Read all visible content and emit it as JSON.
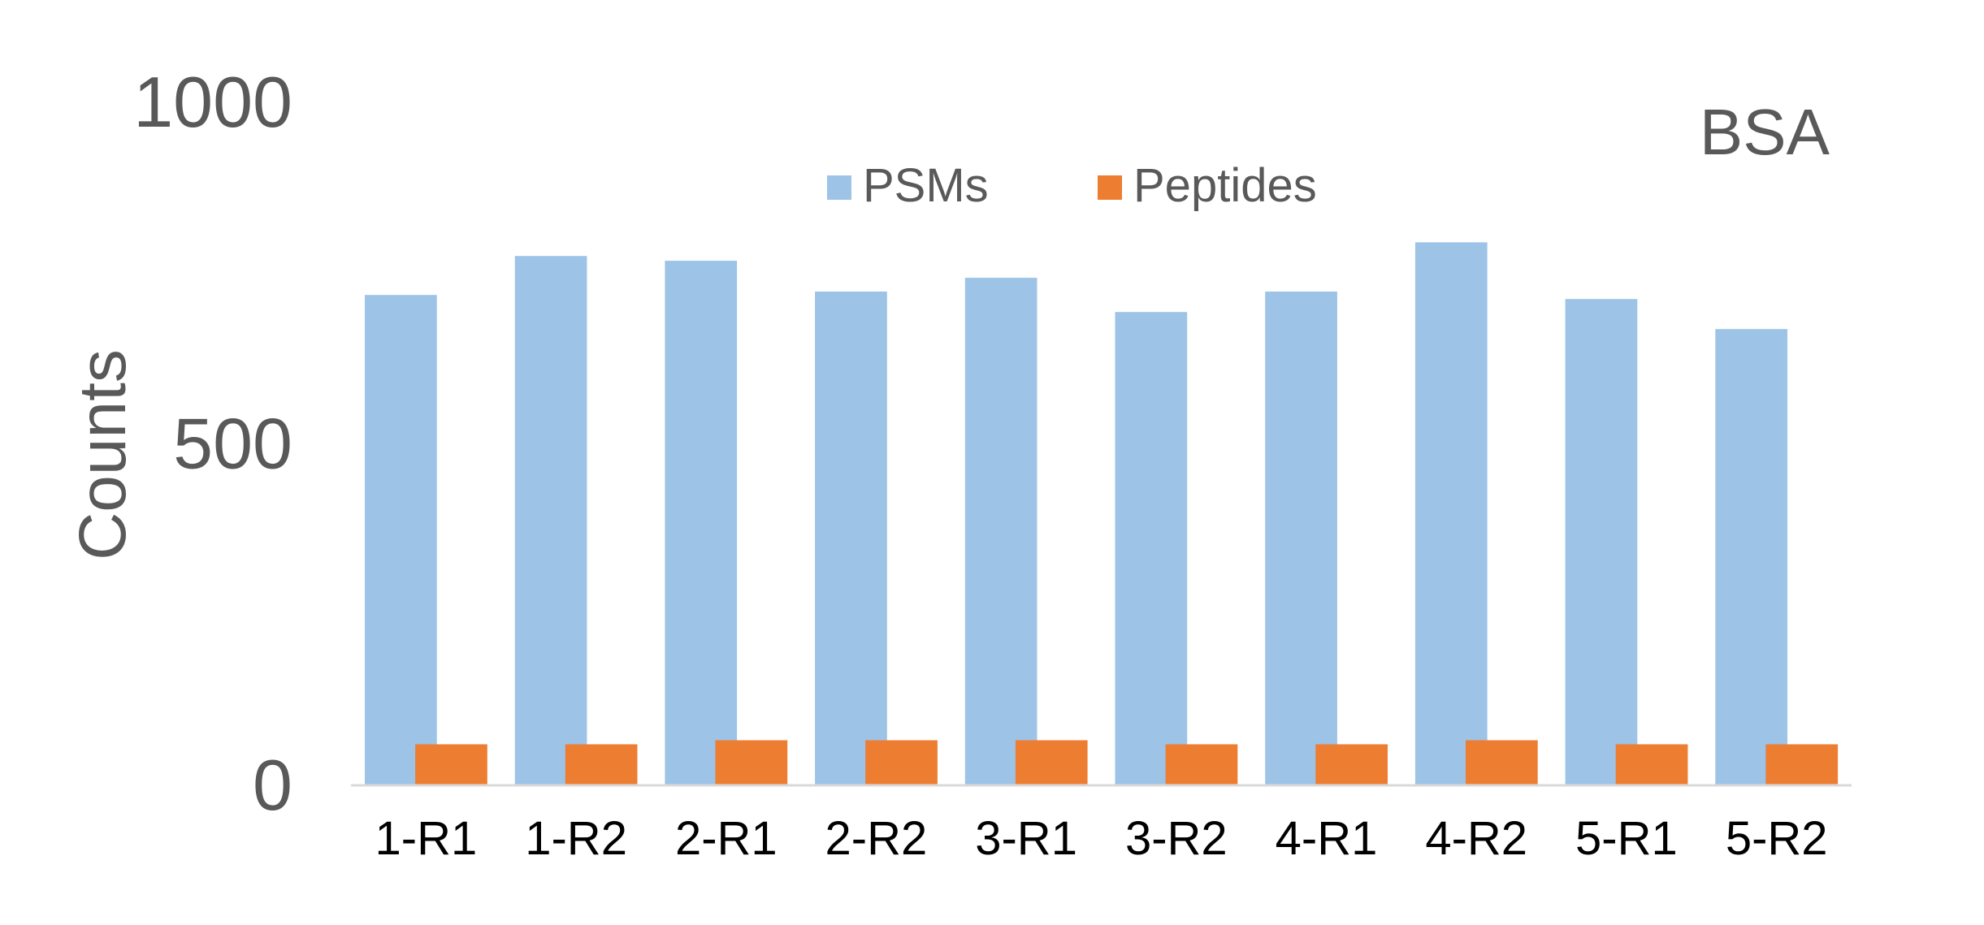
{
  "chart_data": {
    "type": "bar",
    "title": "",
    "annotation": "BSA",
    "xlabel": "",
    "ylabel": "Counts",
    "ylim": [
      0,
      1000
    ],
    "yticks": [
      0,
      500,
      1000
    ],
    "grid": false,
    "legend_position": "top-center",
    "categories": [
      "1-R1",
      "1-R2",
      "2-R1",
      "2-R2",
      "3-R1",
      "3-R2",
      "4-R1",
      "4-R2",
      "5-R1",
      "5-R2"
    ],
    "series": [
      {
        "name": "PSMs",
        "color": "#9DC3E6",
        "values": [
          718,
          775,
          768,
          723,
          743,
          693,
          723,
          795,
          712,
          668
        ]
      },
      {
        "name": "Peptides",
        "color": "#ED7D31",
        "values": [
          60,
          60,
          66,
          66,
          66,
          60,
          60,
          66,
          60,
          60
        ]
      }
    ]
  }
}
